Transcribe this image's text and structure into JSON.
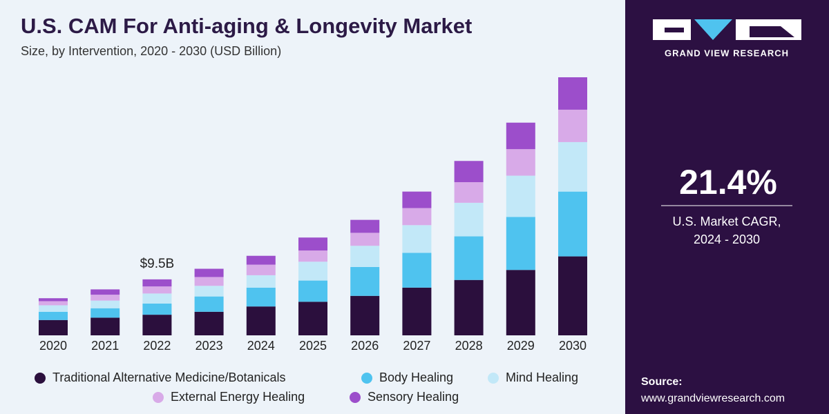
{
  "chart_data": {
    "type": "stacked_bar",
    "title": "U.S. CAM For Anti-aging & Longevity Market",
    "subtitle": "Size, by Intervention, 2020 - 2030 (USD Billion)",
    "categories": [
      "2020",
      "2021",
      "2022",
      "2023",
      "2024",
      "2025",
      "2026",
      "2027",
      "2028",
      "2029",
      "2030"
    ],
    "series": [
      {
        "name": "Traditional Alternative Medicine/Botanicals",
        "color": "#2b0f3d",
        "values": [
          2.6,
          3.0,
          3.5,
          4.0,
          4.9,
          5.7,
          6.7,
          8.1,
          9.4,
          11.1,
          13.4
        ]
      },
      {
        "name": "Body Healing",
        "color": "#4fc3ef",
        "values": [
          1.4,
          1.6,
          1.9,
          2.6,
          3.2,
          3.6,
          4.9,
          5.9,
          7.4,
          9.0,
          11.0
        ]
      },
      {
        "name": "Mind Healing",
        "color": "#c2e8f8",
        "values": [
          1.1,
          1.3,
          1.7,
          1.8,
          2.1,
          3.2,
          3.6,
          4.7,
          5.7,
          7.0,
          8.4
        ]
      },
      {
        "name": "External Energy Healing",
        "color": "#d8aae8",
        "values": [
          0.7,
          1.0,
          1.2,
          1.5,
          1.8,
          1.9,
          2.2,
          2.9,
          3.5,
          4.5,
          5.5
        ]
      },
      {
        "name": "Sensory Healing",
        "color": "#9c4ecb",
        "values": [
          0.5,
          0.9,
          1.2,
          1.4,
          1.5,
          2.2,
          2.2,
          2.8,
          3.6,
          4.5,
          5.5
        ]
      }
    ],
    "annotations": [
      {
        "x": "2022",
        "value": 9.5,
        "label": "$9.5B"
      }
    ]
  },
  "panel": {
    "brand": "GRAND VIEW RESEARCH",
    "cagr": "21.4%",
    "cagr_label": "U.S. Market CAGR,",
    "cagr_period": "2024 - 2030",
    "source_label": "Source:",
    "source_url": "www.grandviewresearch.com"
  }
}
